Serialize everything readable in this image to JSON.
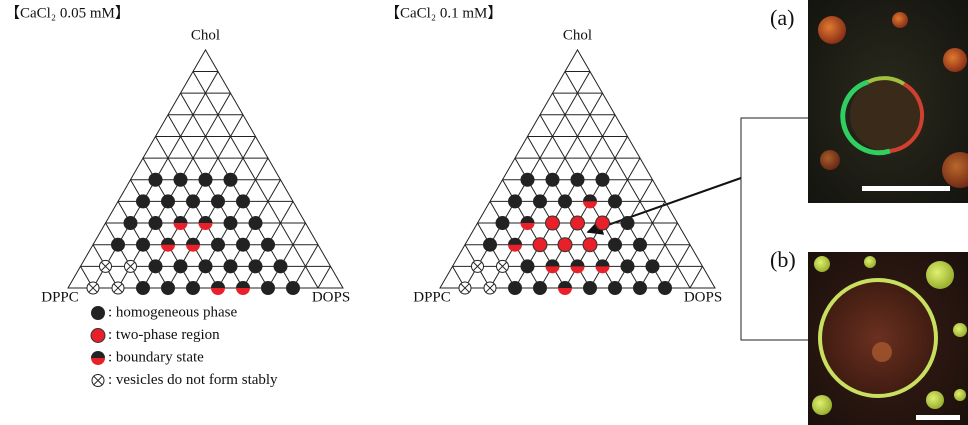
{
  "panels": [
    {
      "title": "【CaCl₂ 0.05 mM】",
      "apex_label": "Chol",
      "left_label": "DPPC",
      "right_label": "DOPS",
      "rows": [
        [
          null,
          "unstable",
          "unstable",
          "homogeneous",
          "homogeneous",
          "homogeneous",
          "boundary",
          "boundary",
          "homogeneous",
          "homogeneous"
        ],
        [
          null,
          "unstable",
          "unstable",
          "homogeneous",
          "homogeneous",
          "homogeneous",
          "homogeneous",
          "homogeneous",
          "homogeneous"
        ],
        [
          null,
          "homogeneous",
          "homogeneous",
          "boundary",
          "boundary",
          "homogeneous",
          "homogeneous",
          "homogeneous"
        ],
        [
          null,
          "homogeneous",
          "homogeneous",
          "boundary",
          "boundary",
          "homogeneous",
          "homogeneous"
        ],
        [
          null,
          "homogeneous",
          "homogeneous",
          "homogeneous",
          "homogeneous",
          "homogeneous"
        ],
        [
          null,
          "homogeneous",
          "homogeneous",
          "homogeneous",
          "homogeneous"
        ]
      ]
    },
    {
      "title": "【CaCl₂ 0.1 mM】",
      "apex_label": "Chol",
      "left_label": "DPPC",
      "right_label": "DOPS",
      "rows": [
        [
          null,
          "unstable",
          "unstable",
          "homogeneous",
          "homogeneous",
          "boundary",
          "homogeneous",
          "homogeneous",
          "homogeneous",
          "homogeneous"
        ],
        [
          null,
          "unstable",
          "unstable",
          "homogeneous",
          "boundary",
          "boundary",
          "boundary",
          "homogeneous",
          "homogeneous"
        ],
        [
          null,
          "homogeneous",
          "boundary",
          "two-phase",
          "two-phase",
          "two-phase",
          "homogeneous",
          "homogeneous"
        ],
        [
          null,
          "homogeneous",
          "boundary",
          "two-phase",
          "two-phase",
          "two-phase",
          "homogeneous"
        ],
        [
          null,
          "homogeneous",
          "homogeneous",
          "homogeneous",
          "boundary",
          "homogeneous"
        ],
        [
          null,
          "homogeneous",
          "homogeneous",
          "homogeneous",
          "homogeneous"
        ]
      ]
    }
  ],
  "legend": [
    {
      "state": "homogeneous",
      "label": ": homogeneous phase"
    },
    {
      "state": "two-phase",
      "label": ": two-phase region"
    },
    {
      "state": "boundary",
      "label": ": boundary state"
    },
    {
      "state": "unstable",
      "label": ": vesicles do not form stably"
    }
  ],
  "images": [
    {
      "label": "(a)"
    },
    {
      "label": "(b)"
    }
  ]
}
